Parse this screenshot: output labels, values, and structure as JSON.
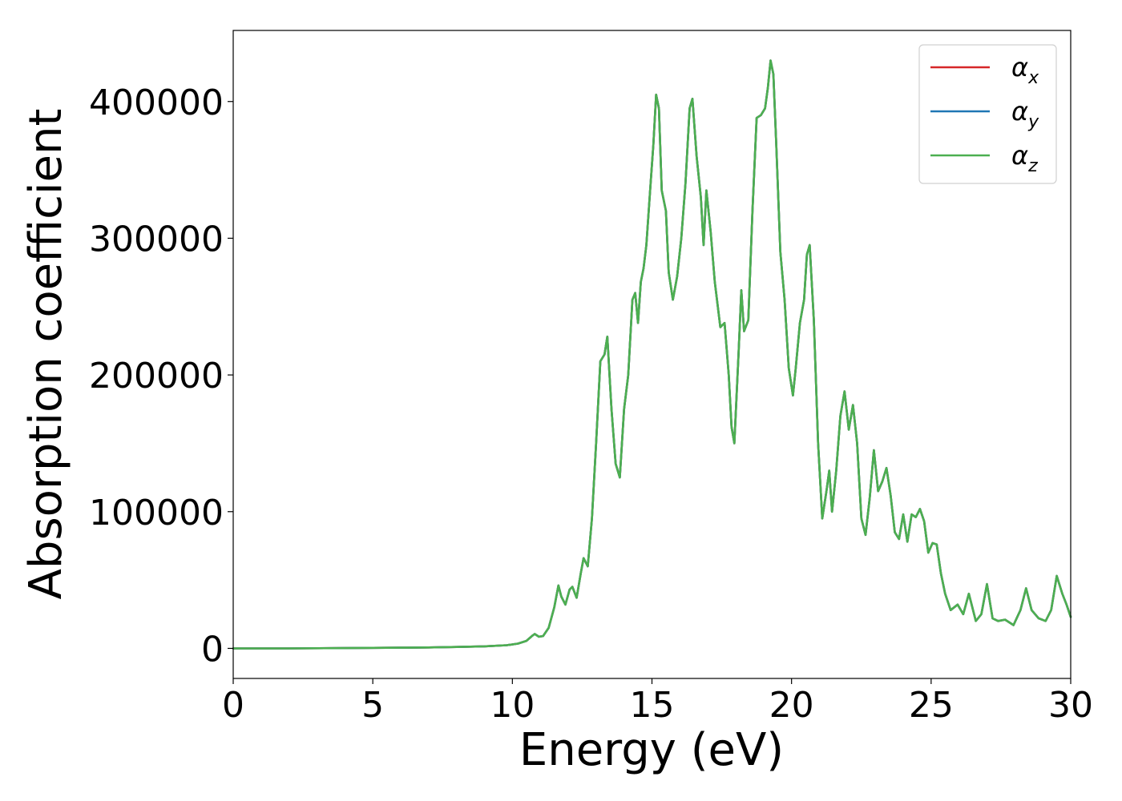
{
  "chart_data": {
    "type": "line",
    "title": "",
    "xlabel": "Energy (eV)",
    "ylabel": "Absorption coefficient",
    "xlim": [
      0,
      30
    ],
    "ylim": [
      -22000,
      452000
    ],
    "xticks": [
      0,
      5,
      10,
      15,
      20,
      25,
      30
    ],
    "yticks": [
      0,
      100000,
      200000,
      300000,
      400000
    ],
    "grid": false,
    "legend_position": "top-right",
    "legend": [
      {
        "symbol": "α",
        "sub": "x",
        "color": "#d62728"
      },
      {
        "symbol": "α",
        "sub": "y",
        "color": "#1f77b4"
      },
      {
        "symbol": "α",
        "sub": "z",
        "color": "#4caf50"
      }
    ],
    "series_x": [
      0,
      2,
      4,
      6,
      7,
      8,
      9,
      9.8,
      10.2,
      10.5,
      10.7,
      10.8,
      10.95,
      11.1,
      11.3,
      11.5,
      11.65,
      11.75,
      11.9,
      12.05,
      12.15,
      12.3,
      12.45,
      12.55,
      12.7,
      12.85,
      13.0,
      13.15,
      13.3,
      13.4,
      13.55,
      13.7,
      13.85,
      14.0,
      14.15,
      14.3,
      14.4,
      14.5,
      14.6,
      14.7,
      14.8,
      14.95,
      15.05,
      15.15,
      15.25,
      15.35,
      15.5,
      15.6,
      15.75,
      15.9,
      16.05,
      16.2,
      16.35,
      16.45,
      16.6,
      16.75,
      16.85,
      16.95,
      17.1,
      17.25,
      17.45,
      17.6,
      17.75,
      17.85,
      17.95,
      18.1,
      18.2,
      18.3,
      18.45,
      18.6,
      18.75,
      18.9,
      19.05,
      19.15,
      19.25,
      19.35,
      19.45,
      19.6,
      19.75,
      19.9,
      20.05,
      20.15,
      20.3,
      20.45,
      20.55,
      20.65,
      20.8,
      20.95,
      21.1,
      21.25,
      21.35,
      21.45,
      21.6,
      21.75,
      21.9,
      22.05,
      22.2,
      22.35,
      22.5,
      22.65,
      22.8,
      22.95,
      23.1,
      23.25,
      23.4,
      23.55,
      23.7,
      23.85,
      24.0,
      24.15,
      24.3,
      24.45,
      24.6,
      24.75,
      24.9,
      25.05,
      25.2,
      25.35,
      25.5,
      25.7,
      25.95,
      26.15,
      26.35,
      26.6,
      26.8,
      27.0,
      27.2,
      27.4,
      27.65,
      27.95,
      28.2,
      28.4,
      28.6,
      28.85,
      29.1,
      29.3,
      29.5,
      29.7,
      29.85,
      30.0
    ],
    "series": [
      {
        "name": "αx",
        "color": "#d62728",
        "y": [
          0,
          0,
          200,
          500,
          700,
          1000,
          1500,
          2300,
          3500,
          5500,
          9000,
          10500,
          8500,
          9000,
          15000,
          30000,
          46000,
          38000,
          32000,
          43000,
          45000,
          37000,
          55000,
          66000,
          60000,
          95000,
          150000,
          210000,
          215000,
          228000,
          175000,
          135000,
          125000,
          175000,
          200000,
          255000,
          260000,
          238000,
          268000,
          278000,
          295000,
          340000,
          368000,
          405000,
          395000,
          335000,
          320000,
          275000,
          255000,
          272000,
          300000,
          340000,
          395000,
          402000,
          360000,
          330000,
          295000,
          335000,
          305000,
          268000,
          235000,
          238000,
          200000,
          162000,
          150000,
          215000,
          262000,
          232000,
          240000,
          320000,
          388000,
          390000,
          395000,
          410000,
          430000,
          420000,
          370000,
          290000,
          255000,
          205000,
          185000,
          205000,
          238000,
          255000,
          288000,
          295000,
          240000,
          150000,
          95000,
          115000,
          130000,
          100000,
          130000,
          170000,
          188000,
          160000,
          178000,
          150000,
          95000,
          83000,
          110000,
          145000,
          115000,
          122000,
          132000,
          112000,
          85000,
          80000,
          98000,
          78000,
          98000,
          96000,
          102000,
          93000,
          70000,
          77000,
          76000,
          55000,
          40000,
          28000,
          32000,
          25000,
          40000,
          20000,
          25000,
          47000,
          22000,
          20000,
          21000,
          17000,
          28000,
          44000,
          28000,
          22000,
          20000,
          28000,
          53000,
          40000,
          32000,
          23000
        ]
      },
      {
        "name": "αy",
        "color": "#1f77b4",
        "y": [
          0,
          0,
          200,
          500,
          700,
          1000,
          1500,
          2300,
          3500,
          5500,
          9000,
          10500,
          8500,
          9000,
          15000,
          30000,
          46000,
          38000,
          32000,
          43000,
          45000,
          37000,
          55000,
          66000,
          60000,
          95000,
          150000,
          210000,
          215000,
          228000,
          175000,
          135000,
          125000,
          175000,
          200000,
          255000,
          260000,
          238000,
          268000,
          278000,
          295000,
          340000,
          368000,
          405000,
          395000,
          335000,
          320000,
          275000,
          255000,
          272000,
          300000,
          340000,
          395000,
          402000,
          360000,
          330000,
          295000,
          335000,
          305000,
          268000,
          235000,
          238000,
          200000,
          162000,
          150000,
          215000,
          262000,
          232000,
          240000,
          320000,
          388000,
          390000,
          395000,
          410000,
          430000,
          420000,
          370000,
          290000,
          255000,
          205000,
          185000,
          205000,
          238000,
          255000,
          288000,
          295000,
          240000,
          150000,
          95000,
          115000,
          130000,
          100000,
          130000,
          170000,
          188000,
          160000,
          178000,
          150000,
          95000,
          83000,
          110000,
          145000,
          115000,
          122000,
          132000,
          112000,
          85000,
          80000,
          98000,
          78000,
          98000,
          96000,
          102000,
          93000,
          70000,
          77000,
          76000,
          55000,
          40000,
          28000,
          32000,
          25000,
          40000,
          20000,
          25000,
          47000,
          22000,
          20000,
          21000,
          17000,
          28000,
          44000,
          28000,
          22000,
          20000,
          28000,
          53000,
          40000,
          32000,
          23000
        ]
      },
      {
        "name": "αz",
        "color": "#4caf50",
        "y": [
          0,
          0,
          200,
          500,
          700,
          1000,
          1500,
          2300,
          3500,
          5500,
          9000,
          10500,
          8500,
          9000,
          15000,
          30000,
          46000,
          38000,
          32000,
          43000,
          45000,
          37000,
          55000,
          66000,
          60000,
          95000,
          150000,
          210000,
          215000,
          228000,
          175000,
          135000,
          125000,
          175000,
          200000,
          255000,
          260000,
          238000,
          268000,
          278000,
          295000,
          340000,
          368000,
          405000,
          395000,
          335000,
          320000,
          275000,
          255000,
          272000,
          300000,
          340000,
          395000,
          402000,
          360000,
          330000,
          295000,
          335000,
          305000,
          268000,
          235000,
          238000,
          200000,
          162000,
          150000,
          215000,
          262000,
          232000,
          240000,
          320000,
          388000,
          390000,
          395000,
          410000,
          430000,
          420000,
          370000,
          290000,
          255000,
          205000,
          185000,
          205000,
          238000,
          255000,
          288000,
          295000,
          240000,
          150000,
          95000,
          115000,
          130000,
          100000,
          130000,
          170000,
          188000,
          160000,
          178000,
          150000,
          95000,
          83000,
          110000,
          145000,
          115000,
          122000,
          132000,
          112000,
          85000,
          80000,
          98000,
          78000,
          98000,
          96000,
          102000,
          93000,
          70000,
          77000,
          76000,
          55000,
          40000,
          28000,
          32000,
          25000,
          40000,
          20000,
          25000,
          47000,
          22000,
          20000,
          21000,
          17000,
          28000,
          44000,
          28000,
          22000,
          20000,
          28000,
          53000,
          40000,
          32000,
          23000
        ]
      }
    ]
  }
}
